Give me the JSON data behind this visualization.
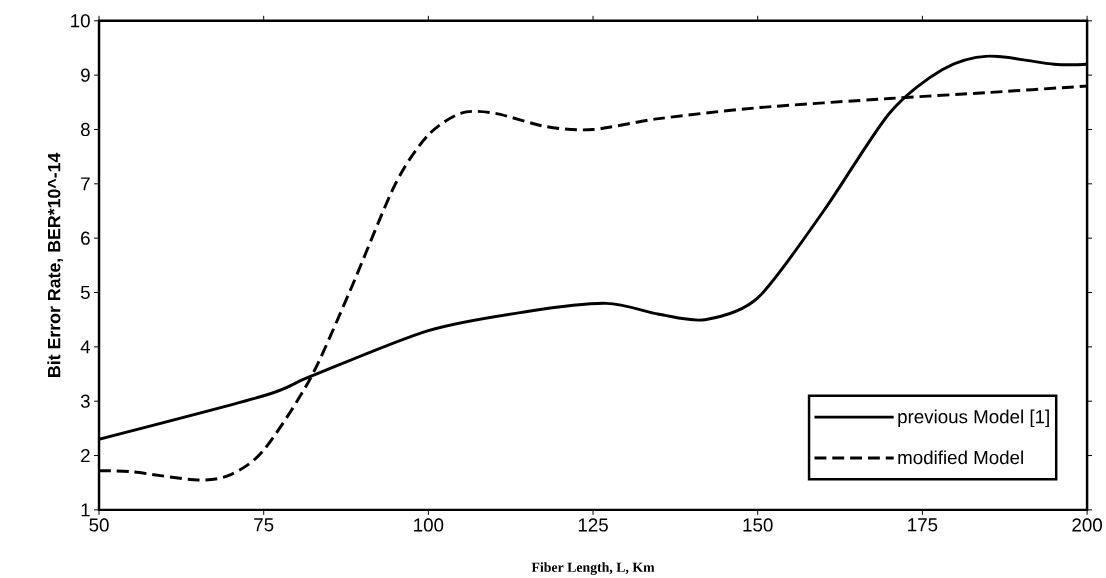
{
  "chart_data": {
    "type": "line",
    "xlabel": "Fiber Length, L, Km",
    "ylabel": "Bit Error Rate, BER*10^-14",
    "xlim": [
      50,
      200
    ],
    "xticks": [
      50,
      75,
      100,
      125,
      150,
      175,
      200
    ],
    "ylim": [
      1,
      10
    ],
    "yticks": [
      1,
      2,
      3,
      4,
      5,
      6,
      7,
      8,
      9,
      10
    ],
    "grid": false,
    "legend": "bottom right",
    "marker": "none",
    "series": [
      {
        "name": "previous Model [1]",
        "color": "#000000",
        "line_style": "solid",
        "x": [
          50,
          75,
          82,
          100,
          115,
          127,
          135,
          142,
          150,
          160,
          170,
          178,
          185,
          195,
          200
        ],
        "values": [
          2.3,
          3.1,
          3.45,
          4.3,
          4.65,
          4.8,
          4.6,
          4.5,
          4.9,
          6.5,
          8.3,
          9.1,
          9.35,
          9.2,
          9.2
        ]
      },
      {
        "name": "modified Model",
        "color": "#000000",
        "line_style": "dashed",
        "x": [
          50,
          55,
          65,
          70,
          75,
          82,
          88,
          95,
          100,
          105,
          110,
          118,
          125,
          135,
          150,
          170,
          185,
          200
        ],
        "values": [
          1.72,
          1.7,
          1.55,
          1.65,
          2.1,
          3.4,
          5.0,
          7.0,
          7.9,
          8.3,
          8.3,
          8.05,
          8.0,
          8.2,
          8.4,
          8.57,
          8.68,
          8.8
        ]
      }
    ]
  }
}
